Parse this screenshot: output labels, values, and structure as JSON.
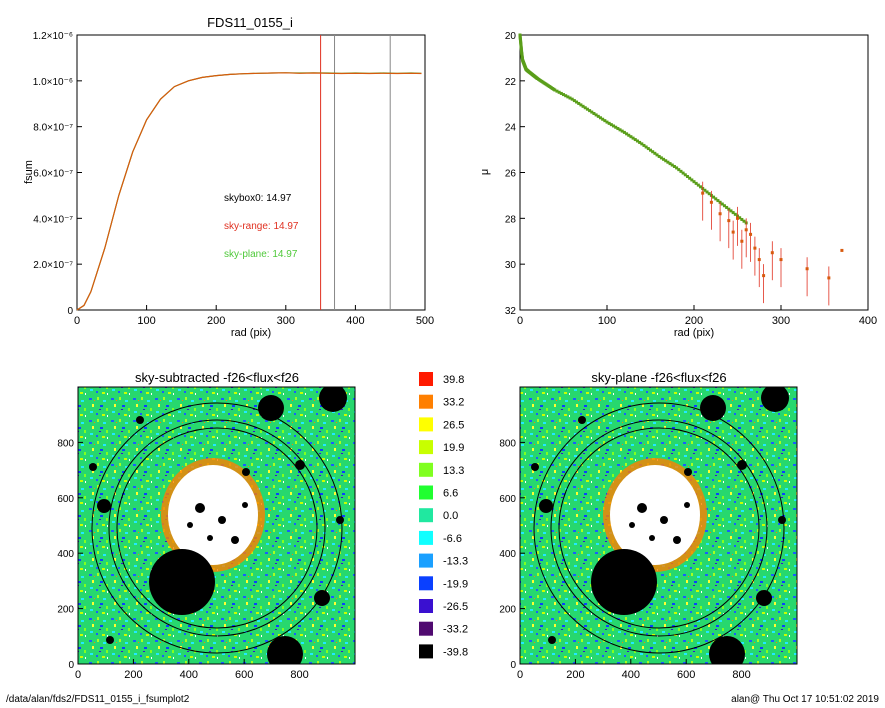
{
  "footer": {
    "left": "/data/alan/fds2/FDS11_0155_i_fsumplot2",
    "right": "alan@  Thu Oct 17 10:51:02 2019"
  },
  "colors": {
    "curve_green": "#5a9e1a",
    "curve_orange": "#d85a0e",
    "range_line": "#e03020",
    "plane_green": "#4fc93a",
    "mask": "#000000"
  },
  "chart_data": [
    {
      "id": "fsum",
      "type": "line",
      "title": "FDS11_0155_i",
      "xlabel": "rad (pix)",
      "ylabel": "fsum",
      "xlim": [
        0,
        500
      ],
      "ylim": [
        0,
        1.2e-06
      ],
      "x_ticks": [
        "0",
        "100",
        "200",
        "300",
        "400",
        "500"
      ],
      "y_ticks": [
        "0",
        "2.0×10⁻⁷",
        "4.0×10⁻⁷",
        "6.0×10⁻⁷",
        "8.0×10⁻⁷",
        "1.0×10⁻⁶",
        "1.2×10⁻⁶"
      ],
      "series": [
        {
          "color": "curve_green",
          "x": [
            0,
            10,
            20,
            40,
            60,
            80,
            100,
            120,
            140,
            160,
            180,
            200,
            220,
            240,
            260,
            280,
            300,
            320,
            340,
            360,
            380,
            400,
            420,
            440,
            460,
            480,
            495
          ],
          "y": [
            0,
            2e-08,
            8e-08,
            2.7e-07,
            5e-07,
            6.9e-07,
            8.3e-07,
            9.2e-07,
            9.75e-07,
            1e-06,
            1.015e-06,
            1.023e-06,
            1.028e-06,
            1.031e-06,
            1.033e-06,
            1.034e-06,
            1.035e-06,
            1.034e-06,
            1.035e-06,
            1.034e-06,
            1.033e-06,
            1.034e-06,
            1.033e-06,
            1.034e-06,
            1.033e-06,
            1.034e-06,
            1.033e-06
          ]
        },
        {
          "color": "curve_orange",
          "x": [
            0,
            10,
            20,
            40,
            60,
            80,
            100,
            120,
            140,
            160,
            180,
            200,
            220,
            240,
            260,
            280,
            300,
            320,
            340,
            360,
            380,
            400,
            420,
            440,
            460,
            480,
            495
          ],
          "y": [
            0,
            2e-08,
            8e-08,
            2.7e-07,
            5e-07,
            6.9e-07,
            8.3e-07,
            9.2e-07,
            9.75e-07,
            1e-06,
            1.015e-06,
            1.023e-06,
            1.028e-06,
            1.031e-06,
            1.033e-06,
            1.034e-06,
            1.035e-06,
            1.033e-06,
            1.034e-06,
            1.033e-06,
            1.032e-06,
            1.033e-06,
            1.032e-06,
            1.033e-06,
            1.032e-06,
            1.033e-06,
            1.032e-06
          ]
        }
      ],
      "vlines": [
        {
          "x": 350,
          "color": "range_line"
        },
        {
          "x": 370,
          "color": "#888888"
        },
        {
          "x": 450,
          "color": "#888888"
        }
      ],
      "annotations": [
        {
          "text": "skybox0: 14.97",
          "color": "#000000"
        },
        {
          "text": "sky-range: 14.97",
          "color": "range_line"
        },
        {
          "text": "sky-plane: 14.97",
          "color": "plane_green"
        }
      ]
    },
    {
      "id": "profile",
      "type": "scatter",
      "title": "",
      "xlabel": "rad (pix)",
      "ylabel": "μ",
      "xlim": [
        0,
        400
      ],
      "ylim": [
        32,
        20
      ],
      "x_ticks": [
        "0",
        "100",
        "200",
        "300",
        "400"
      ],
      "y_ticks": [
        "20",
        "22",
        "24",
        "26",
        "28",
        "30",
        "32"
      ],
      "series": [
        {
          "color": "curve_green",
          "x": [
            0,
            1,
            2,
            3,
            5,
            7,
            10,
            15,
            20,
            30,
            40,
            60,
            80,
            100,
            120,
            140,
            160,
            180,
            200,
            220,
            240,
            260
          ],
          "y": [
            20.0,
            20.4,
            20.8,
            21.1,
            21.3,
            21.5,
            21.6,
            21.75,
            21.9,
            22.15,
            22.4,
            22.8,
            23.3,
            23.8,
            24.25,
            24.75,
            25.3,
            25.8,
            26.4,
            27.0,
            27.6,
            28.2
          ]
        },
        {
          "color": "curve_orange",
          "x": [
            210,
            220,
            230,
            240,
            245,
            250,
            255,
            260,
            265,
            270,
            275,
            280,
            290,
            300,
            330,
            355,
            370
          ],
          "y": [
            26.9,
            27.3,
            27.8,
            28.1,
            28.6,
            28.0,
            29.0,
            28.5,
            28.7,
            29.3,
            29.8,
            30.5,
            29.5,
            29.8,
            30.2,
            30.6,
            29.4
          ]
        }
      ]
    },
    {
      "id": "img-subtracted",
      "type": "heatmap",
      "title": "sky-subtracted -f26<flux<f26",
      "xlim": [
        0,
        1000
      ],
      "ylim": [
        0,
        1000
      ],
      "x_ticks": [
        "0",
        "200",
        "400",
        "600",
        "800"
      ],
      "y_ticks": [
        "0",
        "200",
        "400",
        "600",
        "800"
      ]
    },
    {
      "id": "img-plane",
      "type": "heatmap",
      "title": "sky-plane -f26<flux<f26",
      "xlim": [
        0,
        1000
      ],
      "ylim": [
        0,
        1000
      ],
      "x_ticks": [
        "0",
        "200",
        "400",
        "600",
        "800"
      ],
      "y_ticks": [
        "0",
        "200",
        "400",
        "600",
        "800"
      ]
    },
    {
      "id": "colorbar",
      "type": "table",
      "levels": [
        {
          "value": "39.8",
          "color": "#ff1a00"
        },
        {
          "value": "33.2",
          "color": "#ff7f00"
        },
        {
          "value": "26.5",
          "color": "#ffff00"
        },
        {
          "value": "19.9",
          "color": "#c8ff00"
        },
        {
          "value": "13.3",
          "color": "#80ff20"
        },
        {
          "value": "6.6",
          "color": "#20ff30"
        },
        {
          "value": "0.0",
          "color": "#20e8a0"
        },
        {
          "value": "-6.6",
          "color": "#10ffff"
        },
        {
          "value": "-13.3",
          "color": "#1aa0ff"
        },
        {
          "value": "-19.9",
          "color": "#0a40ff"
        },
        {
          "value": "-26.5",
          "color": "#3a10d0"
        },
        {
          "value": "-33.2",
          "color": "#500a70"
        },
        {
          "value": "-39.8",
          "color": "#000000"
        }
      ]
    }
  ]
}
